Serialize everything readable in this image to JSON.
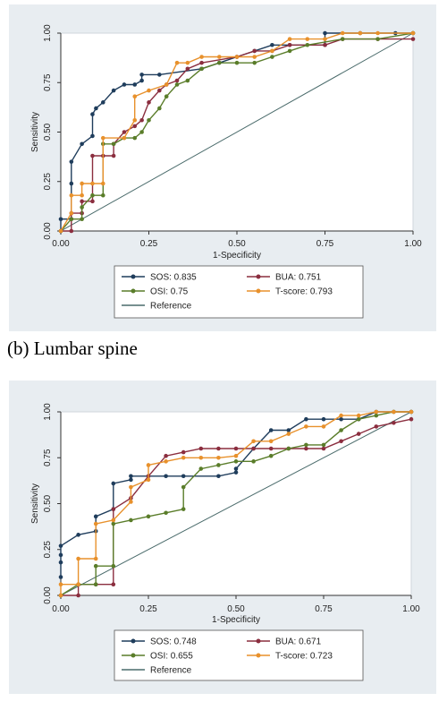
{
  "chart_data": [
    {
      "type": "line",
      "caption": "(b) Lumbar spine",
      "xlabel": "1-Specificity",
      "ylabel": "Sensitivity",
      "xlim": [
        0,
        1
      ],
      "ylim": [
        0,
        1
      ],
      "xticks": [
        "0.00",
        "0.25",
        "0.50",
        "0.75",
        "1.00"
      ],
      "yticks": [
        "0.00",
        "0.25",
        "0.50",
        "0.75",
        "1.00"
      ],
      "legend_position": "bottom",
      "series": [
        {
          "name": "SOS: 0.835",
          "color": "#1f3d5c",
          "x": [
            0,
            0,
            0.03,
            0.03,
            0.03,
            0.06,
            0.09,
            0.09,
            0.1,
            0.12,
            0.15,
            0.18,
            0.21,
            0.23,
            0.23,
            0.28,
            0.4,
            0.45,
            0.5,
            0.55,
            0.6,
            0.65,
            0.75,
            0.75,
            0.85,
            0.95,
            1
          ],
          "y": [
            0,
            0.06,
            0.06,
            0.24,
            0.35,
            0.44,
            0.48,
            0.59,
            0.62,
            0.65,
            0.71,
            0.74,
            0.74,
            0.76,
            0.79,
            0.79,
            0.82,
            0.85,
            0.88,
            0.91,
            0.94,
            0.94,
            0.94,
            1,
            1,
            1,
            1
          ]
        },
        {
          "name": "BUA: 0.751",
          "color": "#8b2e3f",
          "x": [
            0,
            0.03,
            0.03,
            0.06,
            0.06,
            0.09,
            0.09,
            0.12,
            0.15,
            0.15,
            0.18,
            0.21,
            0.23,
            0.25,
            0.28,
            0.3,
            0.33,
            0.36,
            0.4,
            0.5,
            0.55,
            0.6,
            0.65,
            0.75,
            0.8,
            0.9,
            1
          ],
          "y": [
            0,
            0,
            0.09,
            0.09,
            0.15,
            0.15,
            0.38,
            0.38,
            0.38,
            0.44,
            0.5,
            0.53,
            0.56,
            0.65,
            0.71,
            0.74,
            0.76,
            0.82,
            0.85,
            0.88,
            0.91,
            0.91,
            0.94,
            0.94,
            0.97,
            0.97,
            0.97
          ]
        },
        {
          "name": "OSI: 0.75",
          "color": "#5a7d2a",
          "x": [
            0,
            0.03,
            0.06,
            0.06,
            0.09,
            0.12,
            0.12,
            0.15,
            0.18,
            0.21,
            0.23,
            0.25,
            0.28,
            0.3,
            0.33,
            0.36,
            0.4,
            0.45,
            0.5,
            0.55,
            0.6,
            0.65,
            0.7,
            0.8,
            0.9,
            1
          ],
          "y": [
            0,
            0.06,
            0.06,
            0.12,
            0.18,
            0.18,
            0.44,
            0.44,
            0.47,
            0.47,
            0.5,
            0.56,
            0.62,
            0.68,
            0.74,
            0.76,
            0.82,
            0.85,
            0.85,
            0.85,
            0.88,
            0.91,
            0.94,
            0.97,
            0.97,
            1
          ]
        },
        {
          "name": "T-score: 0.793",
          "color": "#e8912c",
          "x": [
            0,
            0.03,
            0.03,
            0.06,
            0.06,
            0.09,
            0.12,
            0.12,
            0.18,
            0.21,
            0.21,
            0.25,
            0.3,
            0.33,
            0.36,
            0.4,
            0.45,
            0.5,
            0.55,
            0.6,
            0.65,
            0.7,
            0.75,
            0.8,
            0.85,
            0.9,
            1
          ],
          "y": [
            0,
            0.09,
            0.18,
            0.18,
            0.24,
            0.24,
            0.24,
            0.47,
            0.47,
            0.56,
            0.68,
            0.71,
            0.74,
            0.85,
            0.85,
            0.88,
            0.88,
            0.88,
            0.88,
            0.91,
            0.97,
            0.97,
            0.97,
            1,
            1,
            1,
            1
          ]
        },
        {
          "name": "Reference",
          "color": "#4a6b6b",
          "x": [
            0,
            1
          ],
          "y": [
            0,
            1
          ],
          "no_markers": true
        }
      ]
    },
    {
      "type": "line",
      "xlabel": "1-Specificity",
      "ylabel": "Sensitivity",
      "xlim": [
        0,
        1
      ],
      "ylim": [
        0,
        1
      ],
      "xticks": [
        "0.00",
        "0.25",
        "0.50",
        "0.75",
        "1.00"
      ],
      "yticks": [
        "0.00",
        "0.25",
        "0.50",
        "0.75",
        "1.00"
      ],
      "legend_position": "bottom",
      "series": [
        {
          "name": "SOS: 0.748",
          "color": "#1f3d5c",
          "x": [
            0,
            0,
            0,
            0,
            0.05,
            0.1,
            0.1,
            0.15,
            0.15,
            0.2,
            0.2,
            0.25,
            0.3,
            0.35,
            0.45,
            0.5,
            0.5,
            0.55,
            0.6,
            0.65,
            0.7,
            0.75,
            0.8,
            0.85,
            0.9,
            0.95,
            1
          ],
          "y": [
            0.1,
            0.18,
            0.22,
            0.27,
            0.33,
            0.35,
            0.43,
            0.47,
            0.61,
            0.63,
            0.65,
            0.65,
            0.65,
            0.65,
            0.65,
            0.67,
            0.69,
            0.8,
            0.9,
            0.9,
            0.96,
            0.96,
            0.96,
            0.96,
            1,
            1,
            1
          ]
        },
        {
          "name": "BUA: 0.671",
          "color": "#8b2e3f",
          "x": [
            0,
            0.05,
            0.05,
            0.1,
            0.15,
            0.15,
            0.2,
            0.25,
            0.3,
            0.35,
            0.4,
            0.45,
            0.5,
            0.55,
            0.6,
            0.65,
            0.7,
            0.75,
            0.8,
            0.85,
            0.9,
            0.95,
            1
          ],
          "y": [
            0,
            0,
            0.06,
            0.06,
            0.06,
            0.47,
            0.53,
            0.65,
            0.76,
            0.78,
            0.8,
            0.8,
            0.8,
            0.8,
            0.8,
            0.8,
            0.8,
            0.8,
            0.84,
            0.88,
            0.92,
            0.94,
            0.96
          ]
        },
        {
          "name": "OSI: 0.655",
          "color": "#5a7d2a",
          "x": [
            0,
            0.05,
            0.1,
            0.1,
            0.15,
            0.15,
            0.2,
            0.25,
            0.3,
            0.35,
            0.35,
            0.4,
            0.45,
            0.5,
            0.55,
            0.6,
            0.65,
            0.7,
            0.75,
            0.8,
            0.85,
            0.9,
            0.95,
            1
          ],
          "y": [
            0,
            0.06,
            0.06,
            0.16,
            0.16,
            0.39,
            0.41,
            0.43,
            0.45,
            0.47,
            0.59,
            0.69,
            0.71,
            0.73,
            0.73,
            0.76,
            0.8,
            0.82,
            0.82,
            0.9,
            0.96,
            0.98,
            1,
            1
          ]
        },
        {
          "name": "T-score: 0.723",
          "color": "#e8912c",
          "x": [
            0,
            0,
            0.05,
            0.05,
            0.1,
            0.1,
            0.15,
            0.2,
            0.2,
            0.25,
            0.25,
            0.3,
            0.35,
            0.4,
            0.45,
            0.5,
            0.55,
            0.6,
            0.65,
            0.7,
            0.75,
            0.8,
            0.85,
            0.9,
            0.95,
            1
          ],
          "y": [
            0,
            0.06,
            0.06,
            0.2,
            0.2,
            0.39,
            0.41,
            0.51,
            0.59,
            0.63,
            0.71,
            0.73,
            0.75,
            0.75,
            0.75,
            0.76,
            0.84,
            0.84,
            0.88,
            0.92,
            0.92,
            0.98,
            0.98,
            1,
            1,
            1
          ]
        },
        {
          "name": "Reference",
          "color": "#4a6b6b",
          "x": [
            0,
            1
          ],
          "y": [
            0,
            1
          ],
          "no_markers": true
        }
      ]
    }
  ]
}
